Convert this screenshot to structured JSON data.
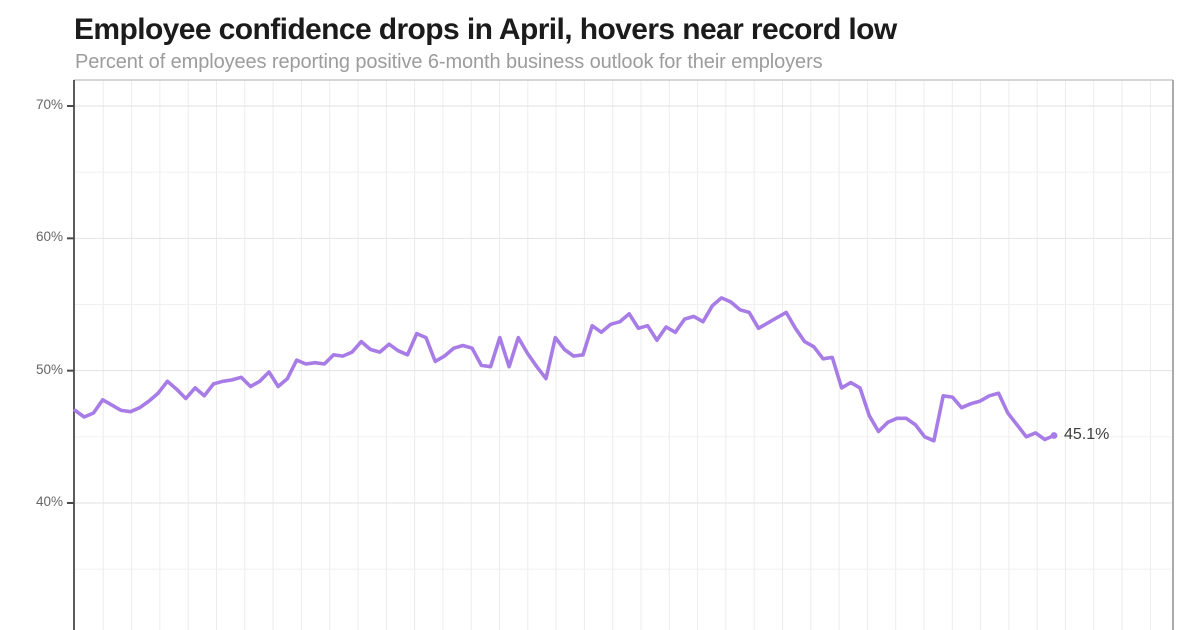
{
  "header": {
    "title": "Employee confidence drops in April, hovers near record low",
    "subtitle": "Percent of employees reporting positive 6-month business outlook for their employers"
  },
  "chart_data": {
    "type": "line",
    "title": "Employee confidence drops in April, hovers near record low",
    "subtitle": "Percent of employees reporting positive 6-month business outlook for their employers",
    "ylabel": "",
    "xlabel": "",
    "yticks": [
      "70%",
      "60%",
      "50%",
      "40%"
    ],
    "ytick_values": [
      70,
      60,
      50,
      40
    ],
    "minor_ytick_values": [
      65,
      55,
      45,
      35
    ],
    "ylim_visible": [
      30.5,
      72.2
    ],
    "grid": true,
    "x_tick_labels_visible": false,
    "legend": "none",
    "end_label": "45.1%",
    "end_value": 45.1,
    "line_color": "#a87ce6",
    "series": [
      {
        "name": "Positive 6-month business outlook",
        "values": [
          47.0,
          46.5,
          46.8,
          47.8,
          47.4,
          47.0,
          46.9,
          47.2,
          47.7,
          48.3,
          49.2,
          48.6,
          47.9,
          48.7,
          48.1,
          49.0,
          49.2,
          49.3,
          49.5,
          48.8,
          49.2,
          49.9,
          48.8,
          49.4,
          50.8,
          50.5,
          50.6,
          50.5,
          51.2,
          51.1,
          51.4,
          52.2,
          51.6,
          51.4,
          52.0,
          51.5,
          51.2,
          52.8,
          52.5,
          50.7,
          51.1,
          51.7,
          51.9,
          51.7,
          50.4,
          50.3,
          52.5,
          50.3,
          52.5,
          51.3,
          50.3,
          49.4,
          52.5,
          51.6,
          51.1,
          51.2,
          53.4,
          52.9,
          53.5,
          53.7,
          54.3,
          53.2,
          53.4,
          52.3,
          53.3,
          52.9,
          53.9,
          54.1,
          53.7,
          54.9,
          55.5,
          55.2,
          54.6,
          54.4,
          53.2,
          53.6,
          54.0,
          54.4,
          53.2,
          52.2,
          51.8,
          50.9,
          51.0,
          48.7,
          49.1,
          48.7,
          46.6,
          45.4,
          46.1,
          46.4,
          46.4,
          45.9,
          45.0,
          44.7,
          48.1,
          48.0,
          47.2,
          47.5,
          47.7,
          48.1,
          48.3,
          46.8,
          45.9,
          45.0,
          45.3,
          44.8,
          45.1
        ]
      }
    ],
    "colors": {
      "line": "#a87ce6",
      "axis": "#4a4a4a",
      "grid_major": "#e2e2e2",
      "grid_minor": "#f0f0f0",
      "grid_vertical": "#ececec",
      "panel_border_top": "#c9c9c9",
      "panel_border_right": "#ababab",
      "title_text": "#1b1b1b",
      "subtitle_text": "#9c9c9c",
      "tick_label_text": "#666666",
      "end_label_text": "#3d3d3d"
    }
  }
}
